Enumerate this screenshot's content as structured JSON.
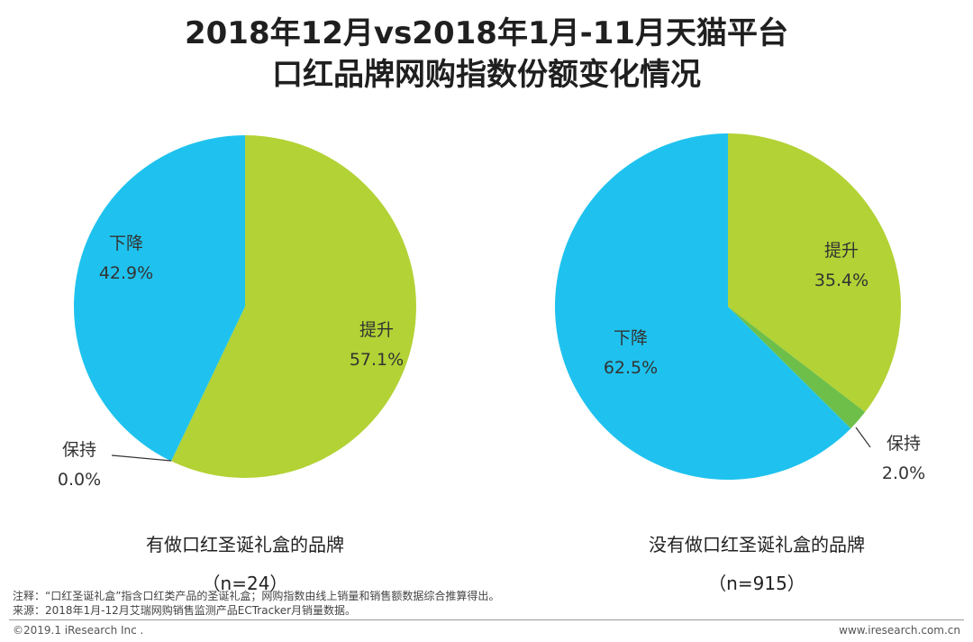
{
  "title_lines": [
    "2018年12月vs2018年1月-11月天猫平台",
    "口红品牌网购指数份额变化情况"
  ],
  "chart_data": [
    {
      "type": "pie",
      "caption": "有做口红圣诞礼盒的品牌",
      "n_label": "（n=24）",
      "slices": [
        {
          "name": "提升",
          "value": 57.1,
          "value_label": "57.1%",
          "color": "#b2d235"
        },
        {
          "name": "保持",
          "value": 0.0,
          "value_label": "0.0%",
          "color": "#6dbf4a"
        },
        {
          "name": "下降",
          "value": 42.9,
          "value_label": "42.9%",
          "color": "#1fc2ee"
        }
      ]
    },
    {
      "type": "pie",
      "caption": "没有做口红圣诞礼盒的品牌",
      "n_label": "（n=915）",
      "slices": [
        {
          "name": "提升",
          "value": 35.4,
          "value_label": "35.4%",
          "color": "#b2d235"
        },
        {
          "name": "保持",
          "value": 2.0,
          "value_label": "2.0%",
          "color": "#6dbf4a"
        },
        {
          "name": "下降",
          "value": 62.5,
          "value_label": "62.5%",
          "color": "#1fc2ee"
        }
      ]
    }
  ],
  "notes": [
    "注释：“口红圣诞礼盒”指含口红类产品的圣诞礼盒；网购指数由线上销量和销售额数据综合推算得出。",
    "来源：2018年1月-12月艾瑞网购销售监测产品ECTracker月销量数据。"
  ],
  "footer": {
    "copyright": "©2019.1 iResearch Inc .",
    "website": "www.iresearch.com.cn"
  }
}
